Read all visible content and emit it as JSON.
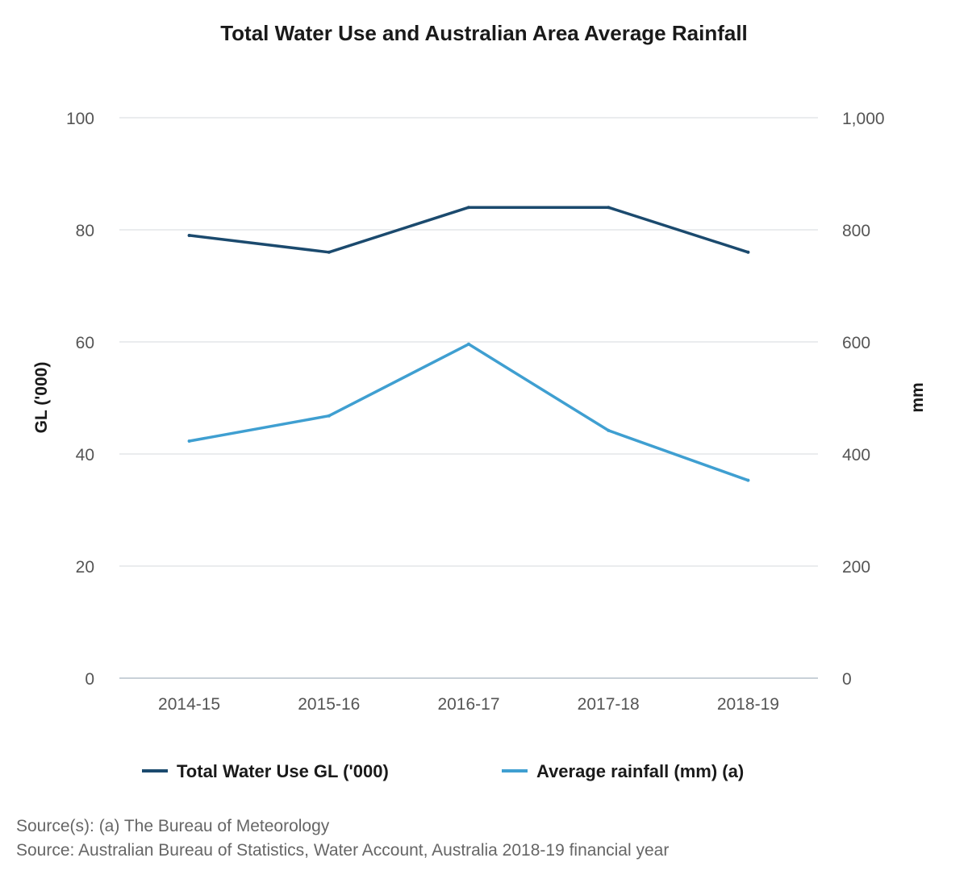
{
  "chart_data": {
    "type": "line",
    "title": "Total Water Use and Australian Area Average Rainfall",
    "categories": [
      "2014-15",
      "2015-16",
      "2016-17",
      "2017-18",
      "2018-19"
    ],
    "y_left": {
      "label": "GL ('000)",
      "range": [
        0,
        100
      ],
      "ticks": [
        0,
        20,
        40,
        60,
        80,
        100
      ],
      "tick_labels": [
        "0",
        "20",
        "40",
        "60",
        "80",
        "100"
      ]
    },
    "y_right": {
      "label": "mm",
      "range": [
        0,
        1000
      ],
      "ticks": [
        0,
        200,
        400,
        600,
        800,
        1000
      ],
      "tick_labels": [
        "0",
        "200",
        "400",
        "600",
        "800",
        "1,000"
      ]
    },
    "grid": true,
    "legend_position": "bottom",
    "series": [
      {
        "name": "Total Water Use GL ('000)",
        "axis": "left",
        "color": "#1b4a6e",
        "values": [
          79,
          76,
          84,
          84,
          76
        ]
      },
      {
        "name": "Average rainfall (mm) (a)",
        "axis": "right",
        "color": "#3f9fd1",
        "values": [
          423,
          468,
          596,
          442,
          353
        ]
      }
    ]
  },
  "sources": {
    "line1": "Source(s): (a) The Bureau of Meteorology",
    "line2": "Source: Australian Bureau of Statistics, Water Account, Australia 2018-19 financial year"
  }
}
